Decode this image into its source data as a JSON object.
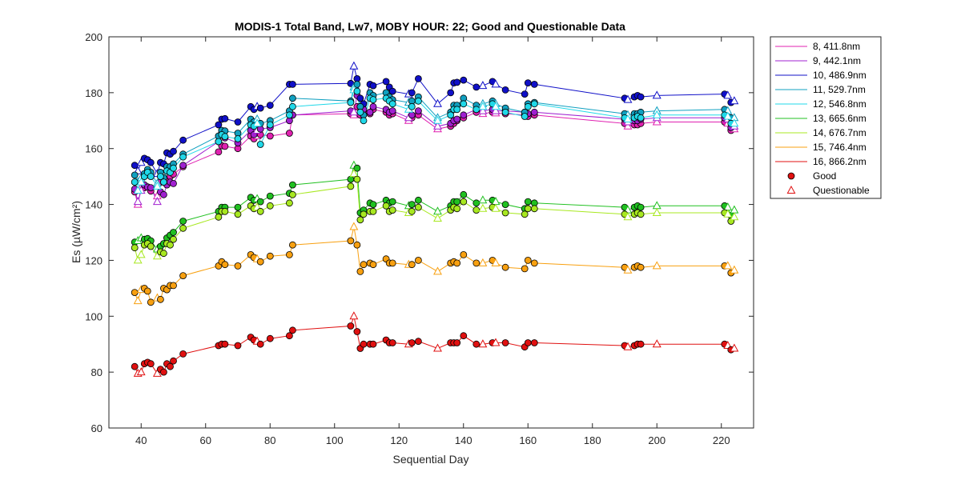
{
  "chart_data": {
    "type": "line",
    "title": "MODIS-1 Total Band,  Lw7, MOBY HOUR: 22;  Good and Questionable Data",
    "xlabel": "Sequential Day",
    "ylabel": "Es (µW/cm²)",
    "xlim": [
      30,
      230
    ],
    "ylim": [
      60,
      200
    ],
    "xticks": [
      40,
      60,
      80,
      100,
      120,
      140,
      160,
      180,
      200,
      220
    ],
    "yticks": [
      60,
      80,
      100,
      120,
      140,
      160,
      180,
      200
    ],
    "grid": false,
    "legend_position": "outside-right",
    "legend_markers": [
      {
        "label": "Good",
        "marker": "circle"
      },
      {
        "label": "Questionable",
        "marker": "triangle"
      }
    ],
    "x": [
      38,
      39,
      40,
      41,
      42,
      43,
      45,
      46,
      47,
      48,
      49,
      50,
      53,
      64,
      65,
      66,
      70,
      74,
      75,
      76,
      77,
      80,
      86,
      87,
      105,
      106,
      107,
      108,
      109,
      111,
      112,
      116,
      117,
      118,
      123,
      124,
      126,
      132,
      136,
      137,
      138,
      140,
      144,
      146,
      149,
      150,
      153,
      159,
      160,
      162,
      190,
      191,
      193,
      194,
      195,
      200,
      221,
      222,
      223,
      224
    ],
    "questionable_index": [
      1,
      2,
      6,
      19,
      25,
      34,
      37,
      43,
      45,
      51,
      55,
      57,
      59
    ],
    "series": [
      {
        "name": "8, 411.8nm",
        "color": "#e020b0",
        "values": [
          144.5,
          140,
          146,
          146,
          146.3,
          144.8,
          143,
          148,
          148,
          149,
          150,
          150.8,
          153.5,
          158.8,
          161,
          160.8,
          160,
          164.5,
          163.5,
          164.5,
          165,
          164.5,
          165.5,
          172,
          172.5,
          172,
          175,
          172,
          173,
          172.5,
          174,
          173,
          172,
          172.5,
          170,
          171,
          172,
          167,
          168,
          169,
          170,
          171,
          173,
          172.5,
          173,
          172.7,
          172.5,
          172,
          171.5,
          172,
          169,
          168,
          168.5,
          168.5,
          169,
          169.5,
          169.5,
          169,
          166.5,
          167
        ]
      },
      {
        "name": "9, 442.1nm",
        "color": "#a020d0",
        "values": [
          145.5,
          141,
          145,
          147,
          146.2,
          146,
          141,
          144.5,
          143.5,
          147,
          148,
          147.5,
          154,
          162.5,
          165.7,
          163.8,
          162,
          166.5,
          165,
          166.5,
          167,
          167.5,
          170,
          172,
          173.5,
          173,
          179,
          175,
          174,
          173,
          175,
          174,
          173,
          173.5,
          171,
          172,
          173.5,
          168,
          169,
          170,
          170.5,
          172,
          174,
          173.5,
          174,
          173.5,
          173.5,
          173,
          172.5,
          173,
          170.5,
          169.5,
          170,
          170,
          170.5,
          171,
          171,
          170.5,
          167.5,
          168
        ]
      },
      {
        "name": "10, 486.9nm",
        "color": "#1010c8",
        "values": [
          154,
          152,
          155,
          156.5,
          156,
          155,
          151,
          155,
          154.5,
          158.5,
          158,
          159,
          163,
          168.5,
          170.5,
          170.7,
          169.5,
          175,
          174,
          175,
          174.5,
          175.5,
          183,
          183,
          183.3,
          189.5,
          185,
          178,
          176,
          183,
          182.5,
          184,
          182,
          180.5,
          179.5,
          180,
          185,
          176,
          180,
          183.5,
          183.7,
          184.5,
          182,
          182.5,
          184,
          183,
          181,
          179.5,
          183.5,
          183,
          178,
          177.5,
          178.5,
          179,
          178.5,
          179,
          179.5,
          179,
          176.5,
          177
        ]
      },
      {
        "name": "11, 529.7nm",
        "color": "#10a0c0",
        "values": [
          150.5,
          148,
          149.5,
          151,
          152.5,
          151.5,
          147.5,
          151.5,
          149.5,
          153.5,
          153.5,
          154.5,
          158,
          164.5,
          166.5,
          166.3,
          165.5,
          170.5,
          169.5,
          170.5,
          169,
          170,
          173.5,
          178,
          177,
          182,
          183,
          175,
          172,
          180,
          179,
          180,
          178.5,
          177.5,
          176.5,
          177,
          178.5,
          171,
          173,
          175.5,
          175.5,
          178,
          175.5,
          176,
          177,
          176,
          174.5,
          173,
          176,
          176.5,
          172.5,
          172,
          172.5,
          172.5,
          173,
          173.5,
          174,
          173.5,
          171,
          171
        ]
      },
      {
        "name": "12, 546.8nm",
        "color": "#20d8e8",
        "values": [
          148,
          145,
          148,
          150,
          151.5,
          150,
          146.5,
          150,
          148,
          152,
          151.5,
          153,
          157,
          162.5,
          165,
          164.3,
          163.5,
          168.5,
          168,
          169,
          161.5,
          168.5,
          172,
          175,
          176.5,
          181,
          180.5,
          173,
          170,
          178,
          177.5,
          178,
          177,
          176,
          174,
          175,
          177,
          170,
          172,
          174,
          174,
          176,
          174,
          175,
          176,
          175,
          173,
          171.5,
          175,
          176,
          171,
          170.5,
          171,
          171.5,
          171,
          172,
          172,
          171.5,
          169,
          169
        ]
      },
      {
        "name": "13, 665.6nm",
        "color": "#20c020",
        "values": [
          126.5,
          127,
          128,
          127.5,
          127.8,
          127,
          124,
          125,
          126,
          128,
          129,
          130,
          134,
          137.5,
          139,
          139,
          139,
          142.5,
          141.5,
          142,
          141,
          143,
          144,
          147,
          149,
          154,
          153,
          137,
          138,
          140.5,
          140,
          141.5,
          140.5,
          141,
          139.5,
          140,
          141.5,
          137.5,
          139.5,
          141,
          141,
          143.5,
          140.5,
          141.5,
          141.5,
          141,
          140,
          138.5,
          141,
          140.5,
          139,
          138,
          139,
          139.5,
          139,
          139.5,
          139.5,
          139,
          136,
          138
        ]
      },
      {
        "name": "14, 676.7nm",
        "color": "#a8e820",
        "values": [
          124.5,
          120,
          122,
          125.5,
          126,
          125,
          121.5,
          123,
          122.5,
          126,
          125.5,
          127.5,
          131.5,
          135.5,
          137.5,
          137.5,
          136.5,
          139.5,
          138.5,
          139,
          137.5,
          139.5,
          140.5,
          143.5,
          146.5,
          151,
          149,
          134.5,
          136.5,
          137.5,
          137.5,
          139.5,
          137.5,
          138,
          137,
          137.5,
          139,
          135,
          138,
          139,
          138.5,
          141,
          138,
          138.5,
          139,
          138.5,
          137,
          136.5,
          138.5,
          138.5,
          136.5,
          135.5,
          136.5,
          137,
          136.5,
          137,
          137,
          136.5,
          134,
          135.5
        ]
      },
      {
        "name": "15, 746.4nm",
        "color": "#f8a010",
        "values": [
          108.5,
          105.5,
          109.5,
          110,
          109,
          105,
          106.5,
          106,
          110,
          109.5,
          111,
          111,
          114.5,
          118,
          119.5,
          118.5,
          118,
          122,
          121,
          120.5,
          119.5,
          121.5,
          122,
          125.5,
          127,
          132,
          125.5,
          116,
          118.5,
          119,
          118.5,
          120.5,
          119,
          119,
          118.5,
          118.5,
          120,
          116,
          119,
          119.5,
          119,
          122,
          119,
          119,
          120,
          119,
          117.5,
          117,
          120,
          119,
          117.5,
          116.5,
          117.5,
          118,
          117.5,
          118,
          118,
          118,
          115.5,
          116.5
        ]
      },
      {
        "name": "16, 866.2nm",
        "color": "#e01010",
        "values": [
          82,
          79.5,
          80,
          83,
          83.5,
          83,
          79.5,
          81,
          80,
          83,
          82,
          84,
          86.5,
          89.5,
          90,
          90,
          89.5,
          92.5,
          91.5,
          91,
          90,
          92,
          93,
          95,
          96.5,
          100,
          94.5,
          88.5,
          90,
          90,
          90,
          91.5,
          90.5,
          90.5,
          90,
          90.5,
          91,
          88.5,
          90.5,
          90.5,
          90.5,
          93,
          90,
          90,
          90.5,
          90.5,
          90.5,
          89,
          90.5,
          90.5,
          89.5,
          89,
          89.5,
          90,
          90,
          90,
          90,
          89.5,
          88,
          88.5
        ]
      }
    ],
    "legend": [
      "8, 411.8nm",
      "9, 442.1nm",
      "10, 486.9nm",
      "11, 529.7nm",
      "12, 546.8nm",
      "13, 665.6nm",
      "14, 676.7nm",
      "15, 746.4nm",
      "16, 866.2nm",
      "Good",
      "Questionable"
    ]
  }
}
